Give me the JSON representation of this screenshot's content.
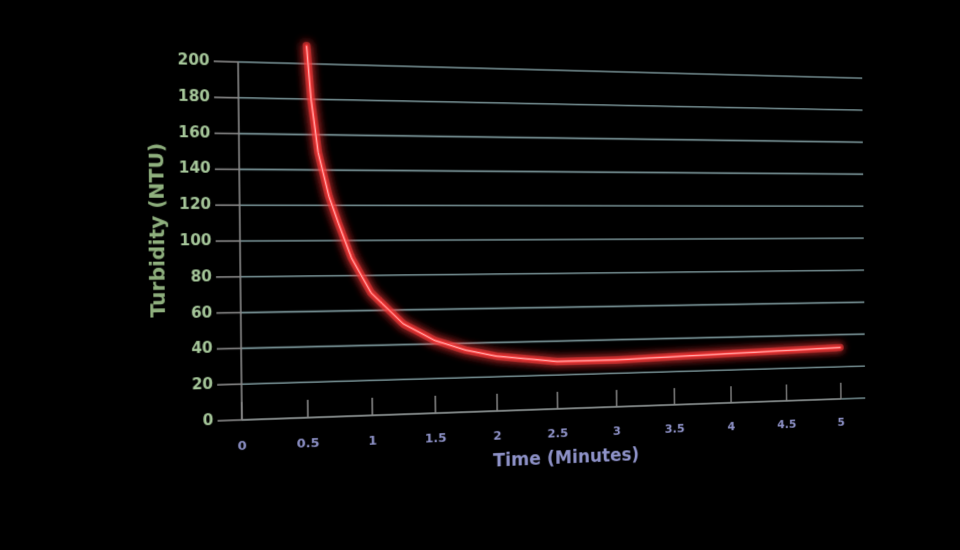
{
  "chart_data": {
    "type": "line",
    "x_label": "Time (Minutes)",
    "y_label": "Turbidity (NTU)",
    "x": [
      0.52,
      0.55,
      0.6,
      0.68,
      0.75,
      0.85,
      1,
      1.25,
      1.5,
      1.75,
      2,
      2.5,
      3,
      3.5,
      4,
      4.5,
      5
    ],
    "values": [
      210,
      180,
      150,
      125,
      110,
      90,
      70,
      52,
      42,
      36,
      32,
      28,
      28,
      29,
      30,
      31,
      32
    ],
    "color": "#ff3b3b",
    "xlim": [
      0,
      5
    ],
    "xticks": [
      0,
      0.5,
      1,
      1.5,
      2,
      2.5,
      3,
      3.5,
      4,
      4.5,
      5
    ],
    "ylim": [
      0,
      200
    ],
    "yticks": [
      0,
      20,
      40,
      60,
      80,
      100,
      120,
      140,
      160,
      180,
      200
    ],
    "grid": true
  }
}
